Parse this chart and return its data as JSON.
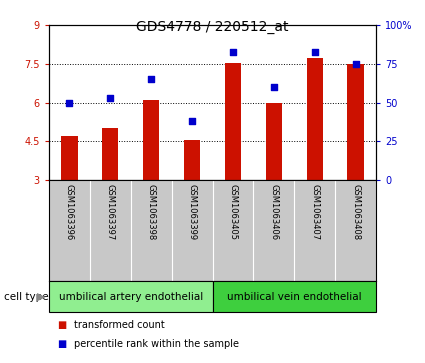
{
  "title": "GDS4778 / 220512_at",
  "samples": [
    "GSM1063396",
    "GSM1063397",
    "GSM1063398",
    "GSM1063399",
    "GSM1063405",
    "GSM1063406",
    "GSM1063407",
    "GSM1063408"
  ],
  "transformed_count": [
    4.7,
    5.0,
    6.1,
    4.55,
    7.55,
    6.0,
    7.72,
    7.5
  ],
  "percentile_rank": [
    50,
    53,
    65,
    38,
    83,
    60,
    83,
    75
  ],
  "bar_color": "#cc1100",
  "dot_color": "#0000cc",
  "ylim_left": [
    3,
    9
  ],
  "ylim_right": [
    0,
    100
  ],
  "yticks_left": [
    3,
    4.5,
    6,
    7.5,
    9
  ],
  "yticks_right": [
    0,
    25,
    50,
    75,
    100
  ],
  "ytick_labels_left": [
    "3",
    "4.5",
    "6",
    "7.5",
    "9"
  ],
  "ytick_labels_right": [
    "0",
    "25",
    "50",
    "75",
    "100%"
  ],
  "cell_type_groups": [
    {
      "label": "umbilical artery endothelial",
      "indices": [
        0,
        1,
        2,
        3
      ],
      "color": "#90ee90"
    },
    {
      "label": "umbilical vein endothelial",
      "indices": [
        4,
        5,
        6,
        7
      ],
      "color": "#3ecf3e"
    }
  ],
  "cell_type_label": "cell type",
  "legend_items": [
    {
      "label": "transformed count",
      "color": "#cc1100"
    },
    {
      "label": "percentile rank within the sample",
      "color": "#0000cc"
    }
  ],
  "background_color": "#ffffff",
  "sample_label_bg": "#c8c8c8",
  "title_fontsize": 10,
  "tick_fontsize": 7,
  "sample_fontsize": 6,
  "celltype_fontsize": 7.5,
  "legend_fontsize": 7
}
